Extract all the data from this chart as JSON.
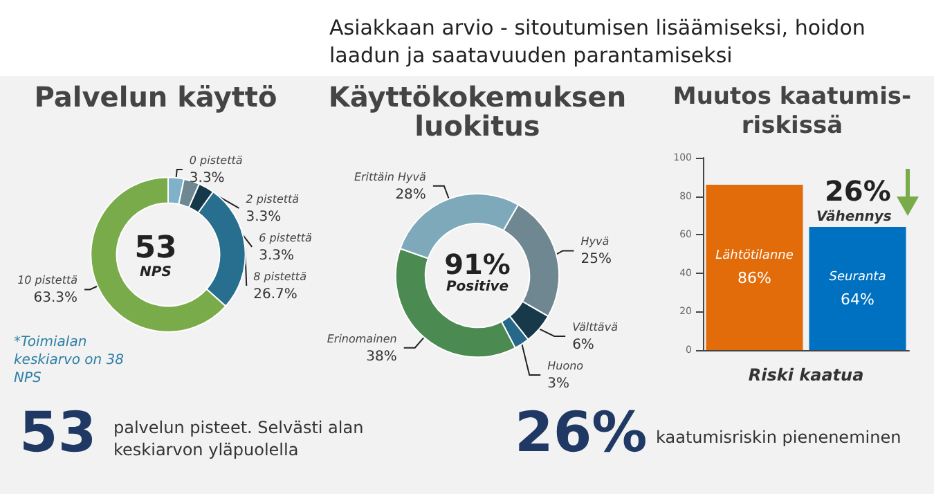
{
  "chart_data": [
    {
      "type": "other",
      "title": "Asiakkaan arvio - sitoutumisen lisäämiseksi, hoidon laadun ja saatavuuden parantamiseksi"
    },
    {
      "type": "donut",
      "title": "Palvelun käyttö",
      "categories": [
        "0 pistettä",
        "2 pistettä",
        "6 pistettä",
        "8 pistettä",
        "10 pistettä"
      ],
      "values": [
        3.3,
        3.3,
        3.3,
        26.7,
        63.3
      ],
      "colors": [
        "#7fb1c9",
        "#6d8793",
        "#15384a",
        "#286f8f",
        "#7aab4a"
      ],
      "value_labels": [
        "3.3%",
        "3.3%",
        "3.3%",
        "26.7%",
        "63.3%"
      ],
      "annotations": [
        "53",
        "NPS",
        "*Toimialan keskiarvo on 38 NPS"
      ]
    },
    {
      "type": "donut",
      "title": "Käyttökokemuksen luokitus",
      "categories": [
        "Hyvä",
        "Välttävä",
        "Huono",
        "Erinomainen",
        "Erittäin Hyvä"
      ],
      "values": [
        25,
        6,
        3,
        38,
        28
      ],
      "colors": [
        "#6f8791",
        "#17394a",
        "#26678a",
        "#4b8a50",
        "#7ea9bb"
      ],
      "value_labels": [
        "25%",
        "6%",
        "3%",
        "38%",
        "28%"
      ],
      "annotations": [
        "91%",
        "Positive"
      ]
    },
    {
      "type": "bar",
      "title": "Muutos kaatumis-riskissä",
      "xlabel": "Riski kaatua",
      "categories": [
        "Lähtötilanne",
        "Seuranta"
      ],
      "values": [
        86,
        64
      ],
      "colors": [
        "#e36c0a",
        "#0070c0"
      ],
      "value_labels": [
        "86%",
        "64%"
      ],
      "ylim": [
        0,
        100
      ],
      "yticks": [
        0,
        20,
        40,
        60,
        80,
        100
      ],
      "annotations": [
        "26%",
        "Vähennys"
      ]
    },
    {
      "type": "other",
      "annotations": [
        "53",
        "palvelun pisteet. Selvästi alan keskiarvon yläpuolella",
        "26%",
        "kaatumisriskin pieneneminen"
      ]
    }
  ]
}
